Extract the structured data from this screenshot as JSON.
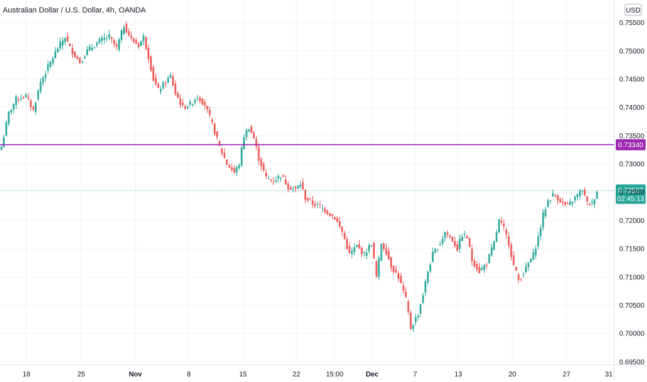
{
  "chart_data": {
    "type": "candlestick",
    "title": "Australian Dollar / U.S. Dollar, 4h, OANDA",
    "currency_label": "USD",
    "x_ticks": [
      "18",
      "25",
      "Nov",
      "8",
      "15",
      "22",
      "15:00",
      "Dec",
      "7",
      "13",
      "20",
      "27",
      "31"
    ],
    "y_ticks": [
      "0.75500",
      "0.75000",
      "0.74500",
      "0.74000",
      "0.73500",
      "0.73000",
      "0.72500",
      "0.72000",
      "0.71500",
      "0.71000",
      "0.70500",
      "0.70000",
      "0.69500"
    ],
    "ylim": [
      0.6945,
      0.759
    ],
    "grid": true,
    "horizontal_line": {
      "value": 0.7334,
      "label": "0.73340",
      "color": "#9c27b0"
    },
    "last_price": {
      "value": 0.72527,
      "label": "0.72527",
      "countdown": "02:45:13",
      "color": "#26a69a"
    },
    "colors": {
      "up": "#26a69a",
      "down": "#ef5350"
    },
    "anchors": [
      {
        "i": 0,
        "v": 0.733
      },
      {
        "i": 3,
        "v": 0.739
      },
      {
        "i": 6,
        "v": 0.7415
      },
      {
        "i": 10,
        "v": 0.742
      },
      {
        "i": 13,
        "v": 0.7395
      },
      {
        "i": 16,
        "v": 0.7445
      },
      {
        "i": 20,
        "v": 0.748
      },
      {
        "i": 23,
        "v": 0.7505
      },
      {
        "i": 26,
        "v": 0.7525
      },
      {
        "i": 28,
        "v": 0.7505
      },
      {
        "i": 32,
        "v": 0.748
      },
      {
        "i": 35,
        "v": 0.75
      },
      {
        "i": 38,
        "v": 0.751
      },
      {
        "i": 41,
        "v": 0.752
      },
      {
        "i": 44,
        "v": 0.7525
      },
      {
        "i": 47,
        "v": 0.7505
      },
      {
        "i": 50,
        "v": 0.7545
      },
      {
        "i": 53,
        "v": 0.752
      },
      {
        "i": 56,
        "v": 0.751
      },
      {
        "i": 58,
        "v": 0.7525
      },
      {
        "i": 60,
        "v": 0.749
      },
      {
        "i": 62,
        "v": 0.745
      },
      {
        "i": 64,
        "v": 0.743
      },
      {
        "i": 67,
        "v": 0.7445
      },
      {
        "i": 69,
        "v": 0.7455
      },
      {
        "i": 71,
        "v": 0.7425
      },
      {
        "i": 74,
        "v": 0.74
      },
      {
        "i": 77,
        "v": 0.7405
      },
      {
        "i": 80,
        "v": 0.742
      },
      {
        "i": 83,
        "v": 0.7405
      },
      {
        "i": 86,
        "v": 0.737
      },
      {
        "i": 89,
        "v": 0.733
      },
      {
        "i": 92,
        "v": 0.73
      },
      {
        "i": 95,
        "v": 0.7285
      },
      {
        "i": 97,
        "v": 0.73
      },
      {
        "i": 99,
        "v": 0.735
      },
      {
        "i": 101,
        "v": 0.7365
      },
      {
        "i": 103,
        "v": 0.7345
      },
      {
        "i": 105,
        "v": 0.731
      },
      {
        "i": 108,
        "v": 0.7275
      },
      {
        "i": 111,
        "v": 0.727
      },
      {
        "i": 114,
        "v": 0.728
      },
      {
        "i": 117,
        "v": 0.726
      },
      {
        "i": 120,
        "v": 0.7255
      },
      {
        "i": 122,
        "v": 0.7265
      },
      {
        "i": 124,
        "v": 0.724
      },
      {
        "i": 127,
        "v": 0.723
      },
      {
        "i": 130,
        "v": 0.7225
      },
      {
        "i": 133,
        "v": 0.7215
      },
      {
        "i": 136,
        "v": 0.7205
      },
      {
        "i": 139,
        "v": 0.718
      },
      {
        "i": 142,
        "v": 0.714
      },
      {
        "i": 145,
        "v": 0.7155
      },
      {
        "i": 148,
        "v": 0.714
      },
      {
        "i": 151,
        "v": 0.716
      },
      {
        "i": 153,
        "v": 0.71
      },
      {
        "i": 155,
        "v": 0.716
      },
      {
        "i": 157,
        "v": 0.7145
      },
      {
        "i": 159,
        "v": 0.712
      },
      {
        "i": 162,
        "v": 0.71
      },
      {
        "i": 165,
        "v": 0.706
      },
      {
        "i": 167,
        "v": 0.701
      },
      {
        "i": 170,
        "v": 0.7035
      },
      {
        "i": 172,
        "v": 0.707
      },
      {
        "i": 174,
        "v": 0.711
      },
      {
        "i": 176,
        "v": 0.714
      },
      {
        "i": 179,
        "v": 0.716
      },
      {
        "i": 181,
        "v": 0.718
      },
      {
        "i": 184,
        "v": 0.7165
      },
      {
        "i": 186,
        "v": 0.715
      },
      {
        "i": 188,
        "v": 0.7175
      },
      {
        "i": 190,
        "v": 0.717
      },
      {
        "i": 192,
        "v": 0.713
      },
      {
        "i": 195,
        "v": 0.711
      },
      {
        "i": 198,
        "v": 0.7125
      },
      {
        "i": 201,
        "v": 0.716
      },
      {
        "i": 203,
        "v": 0.72
      },
      {
        "i": 205,
        "v": 0.7185
      },
      {
        "i": 207,
        "v": 0.716
      },
      {
        "i": 209,
        "v": 0.712
      },
      {
        "i": 211,
        "v": 0.7095
      },
      {
        "i": 214,
        "v": 0.7115
      },
      {
        "i": 217,
        "v": 0.714
      },
      {
        "i": 219,
        "v": 0.717
      },
      {
        "i": 221,
        "v": 0.721
      },
      {
        "i": 223,
        "v": 0.7235
      },
      {
        "i": 225,
        "v": 0.7245
      },
      {
        "i": 227,
        "v": 0.724
      },
      {
        "i": 229,
        "v": 0.723
      },
      {
        "i": 231,
        "v": 0.7225
      },
      {
        "i": 233,
        "v": 0.7235
      },
      {
        "i": 235,
        "v": 0.7245
      },
      {
        "i": 237,
        "v": 0.7255
      },
      {
        "i": 239,
        "v": 0.723
      },
      {
        "i": 241,
        "v": 0.723
      },
      {
        "i": 243,
        "v": 0.7253
      }
    ]
  }
}
